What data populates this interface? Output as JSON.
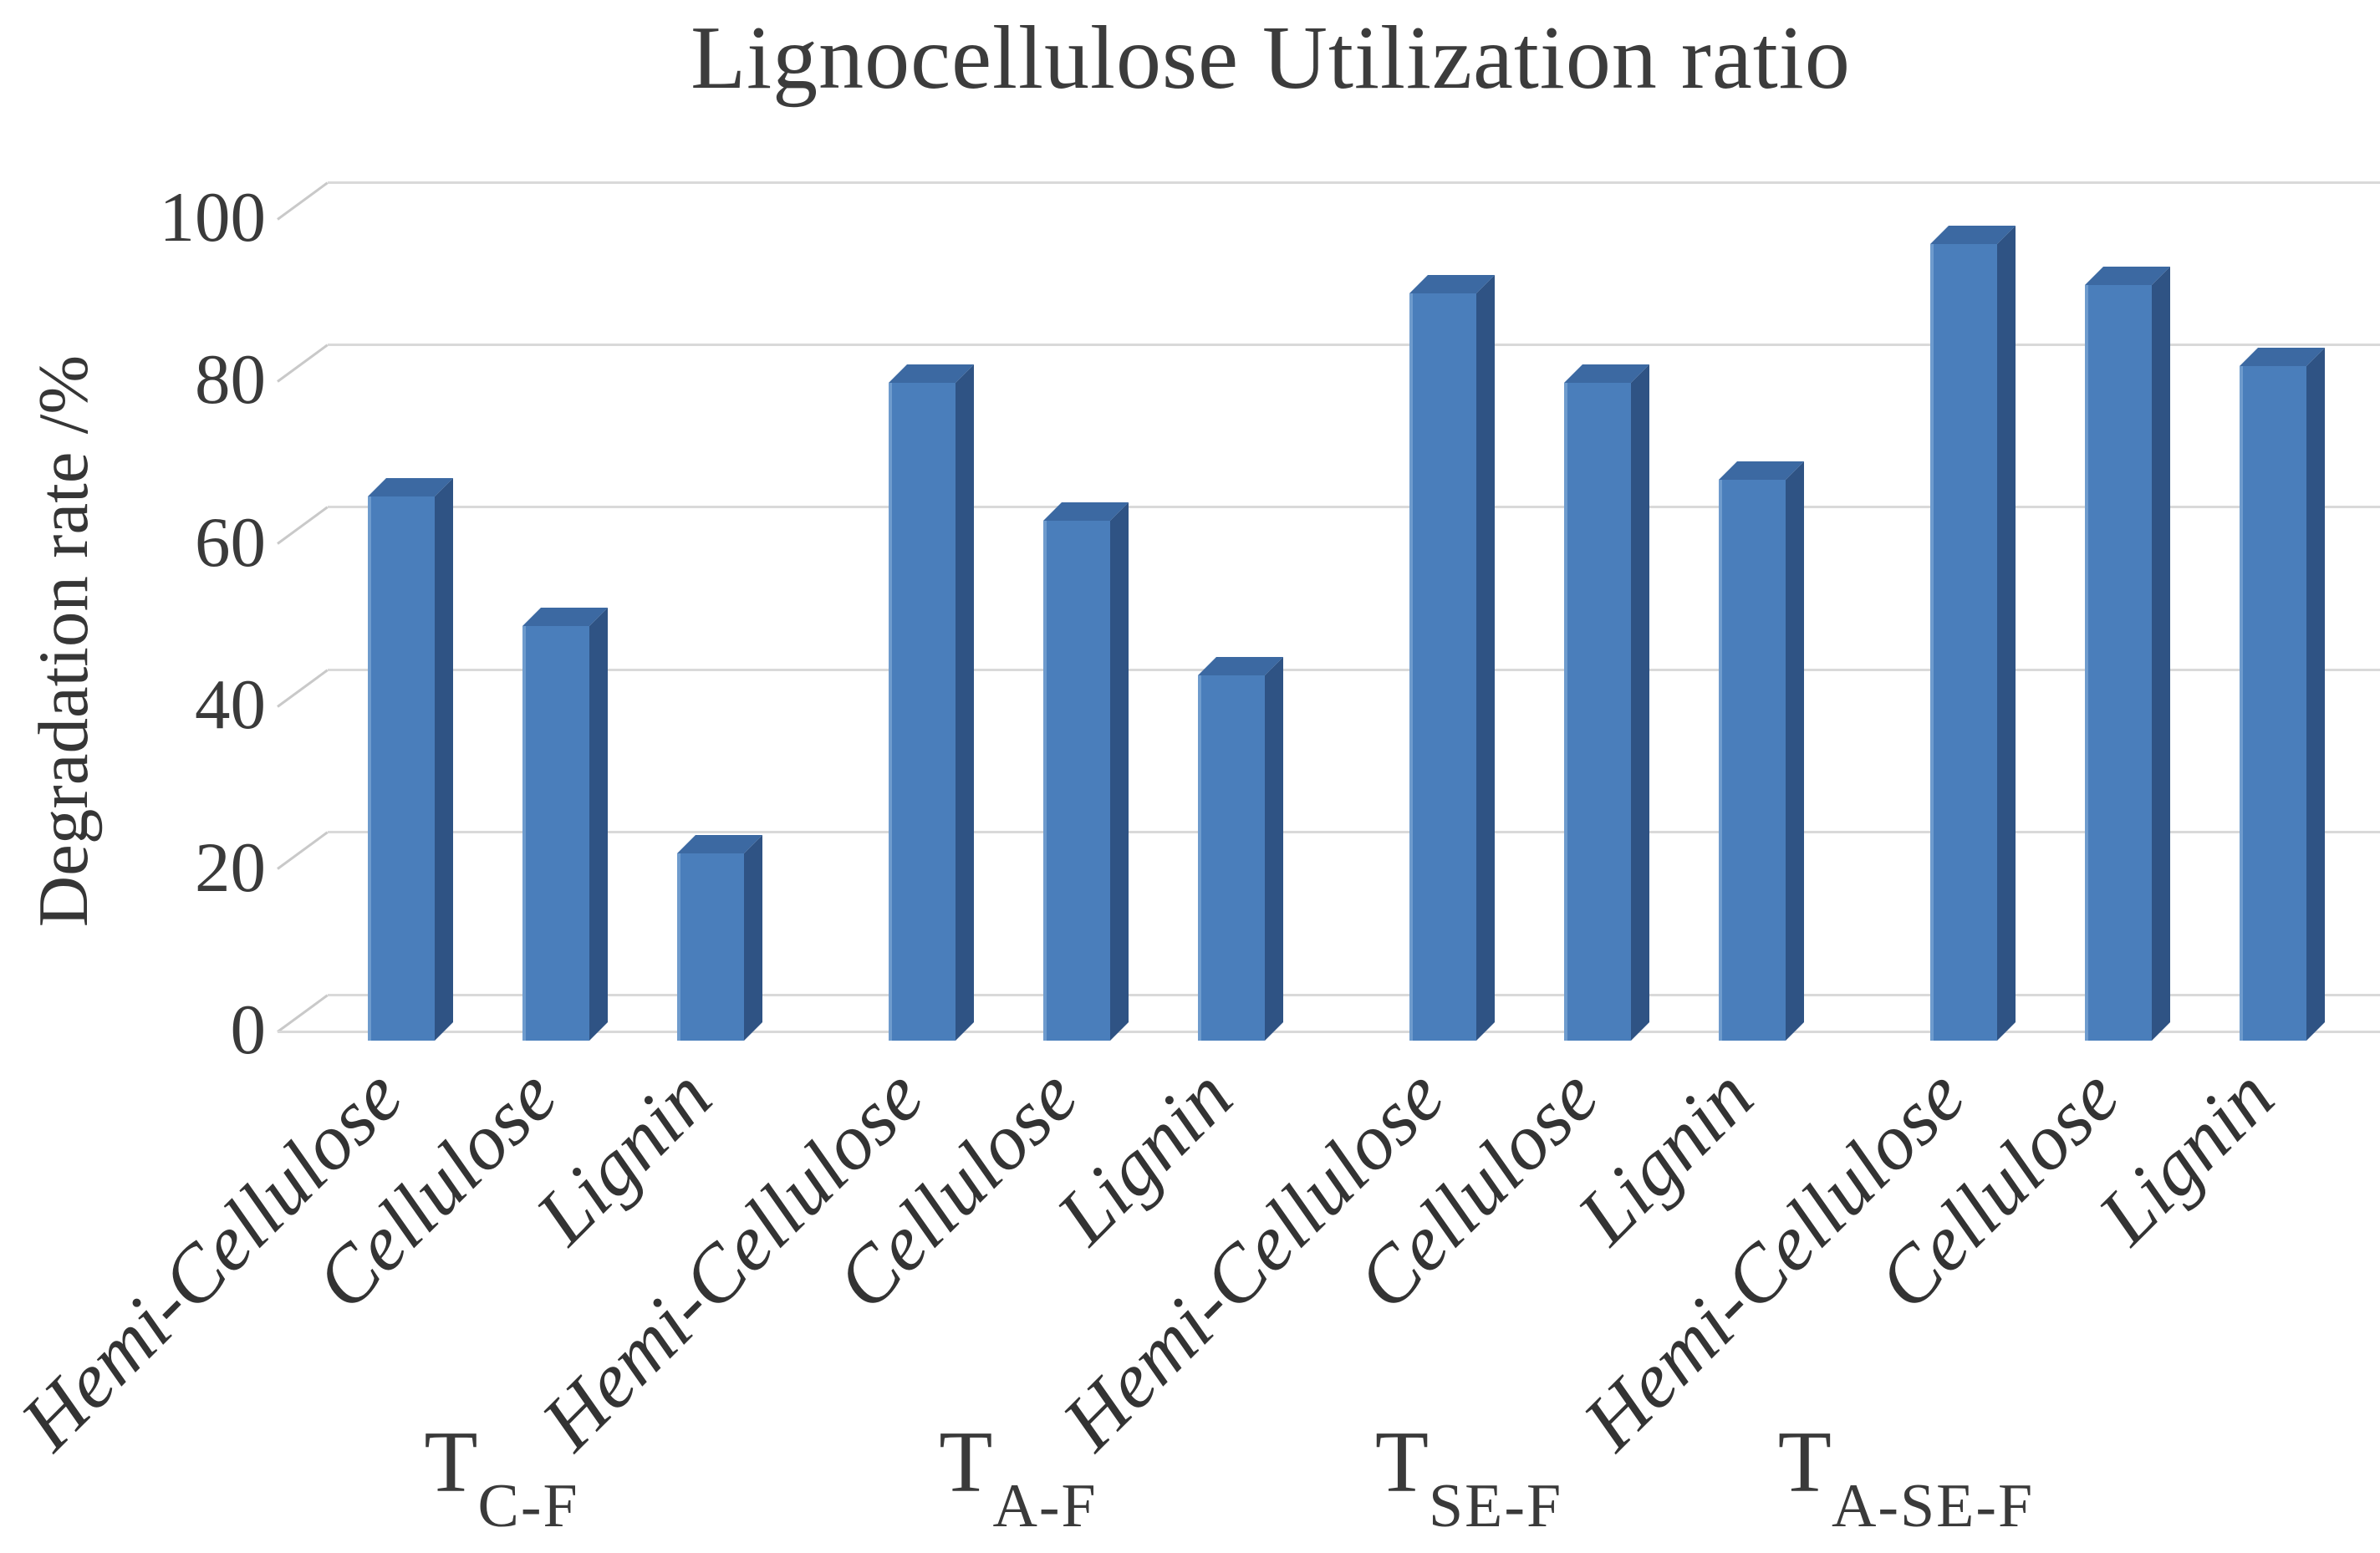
{
  "title": "Lignocellulose Utilization ratio",
  "chart_data": {
    "type": "bar",
    "style": "3d-clustered-column",
    "title": "Lignocellulose Utilization ratio",
    "ylabel": "Degradation rate /%",
    "xlabel": "",
    "ylim": [
      0,
      100
    ],
    "yticks": [
      0,
      20,
      40,
      60,
      80,
      100
    ],
    "grid": true,
    "legend": false,
    "categories": [
      "Hemi-Cellulose",
      "Cellulose",
      "Lignin"
    ],
    "groups": [
      {
        "name": "T",
        "subscript": "C-F",
        "values": [
          67,
          51,
          23
        ]
      },
      {
        "name": "T",
        "subscript": "A-F",
        "values": [
          81,
          64,
          45
        ]
      },
      {
        "name": "T",
        "subscript": "SE-F",
        "values": [
          92,
          81,
          69
        ]
      },
      {
        "name": "T",
        "subscript": "A-SE-F",
        "values": [
          98,
          93,
          83
        ]
      }
    ],
    "colors": {
      "bar_front": "#4a7ebb",
      "bar_side": "#2f5384",
      "bar_top": "#3c69a2",
      "bar_edge_highlight": "#6e9bcd",
      "gridline": "#d9d9d9",
      "text": "#3a3a3a",
      "background": "#ffffff"
    }
  }
}
